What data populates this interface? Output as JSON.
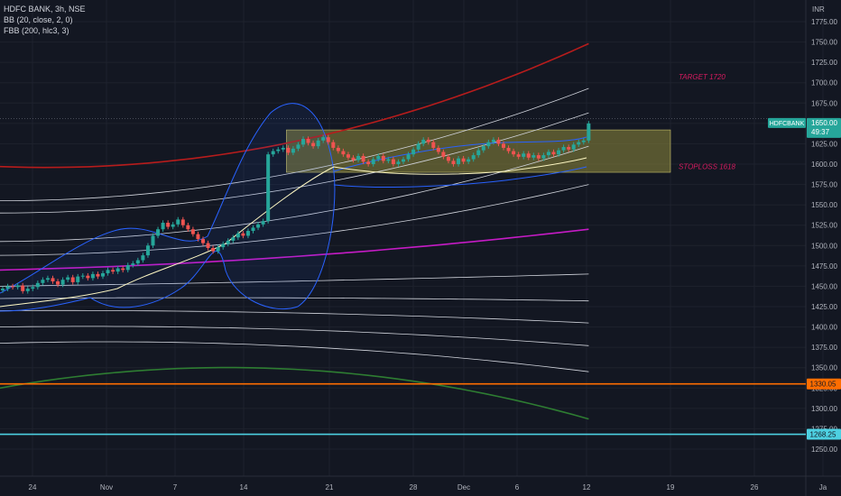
{
  "legend": {
    "symbol": "HDFC BANK, 3h, NSE",
    "indicator1": "BB (20, close, 2, 0)",
    "indicator2": "FBB (200, hlc3, 3)"
  },
  "chart_data": {
    "type": "candlestick",
    "currency": "INR",
    "ylim": [
      1245,
      1790
    ],
    "y_ticks": [
      1250,
      1275,
      1300,
      1325,
      1350,
      1375,
      1400,
      1425,
      1450,
      1475,
      1500,
      1525,
      1550,
      1575,
      1600,
      1625,
      1650,
      1675,
      1700,
      1725,
      1750,
      1775
    ],
    "x_ticks": [
      "24",
      "Nov",
      "7",
      "14",
      "21",
      "28",
      "Dec",
      "6",
      "12",
      "19",
      "26",
      "Ja"
    ],
    "grid": true,
    "price_label": {
      "symbol": "HDFCBANK",
      "price": "1650.00",
      "countdown": "49:37"
    },
    "horizontal_lines": [
      {
        "price": 1330.05,
        "label": "1330.05",
        "color": "#ff6d00"
      },
      {
        "price": 1268.25,
        "label": "1268.25",
        "color": "#4dd0e1"
      }
    ],
    "annotations": [
      {
        "text": "TARGET 1720",
        "color": "#d81b60"
      },
      {
        "text": "STOPLOSS 1618",
        "color": "#d81b60"
      }
    ],
    "zone": {
      "price_top": 1642,
      "price_bottom": 1590,
      "start_index": 57,
      "color": "#8f8a3c"
    },
    "candles_close": [
      1447,
      1450,
      1449,
      1451,
      1444,
      1447,
      1449,
      1454,
      1458,
      1460,
      1456,
      1452,
      1458,
      1461,
      1455,
      1462,
      1463,
      1460,
      1465,
      1462,
      1466,
      1470,
      1468,
      1472,
      1470,
      1476,
      1478,
      1482,
      1488,
      1500,
      1512,
      1520,
      1528,
      1523,
      1526,
      1532,
      1525,
      1520,
      1514,
      1508,
      1503,
      1497,
      1493,
      1498,
      1502,
      1506,
      1510,
      1515,
      1512,
      1518,
      1522,
      1526,
      1530,
      1612,
      1616,
      1618,
      1620,
      1614,
      1619,
      1624,
      1631,
      1626,
      1622,
      1629,
      1633,
      1627,
      1620,
      1616,
      1612,
      1608,
      1605,
      1610,
      1603,
      1600,
      1606,
      1610,
      1604,
      1606,
      1600,
      1603,
      1606,
      1612,
      1618,
      1625,
      1630,
      1627,
      1620,
      1615,
      1609,
      1604,
      1600,
      1607,
      1603,
      1606,
      1611,
      1617,
      1622,
      1627,
      1630,
      1625,
      1620,
      1616,
      1612,
      1609,
      1613,
      1608,
      1611,
      1607,
      1611,
      1615,
      1612,
      1617,
      1621,
      1618,
      1624,
      1627,
      1629,
      1650
    ]
  }
}
